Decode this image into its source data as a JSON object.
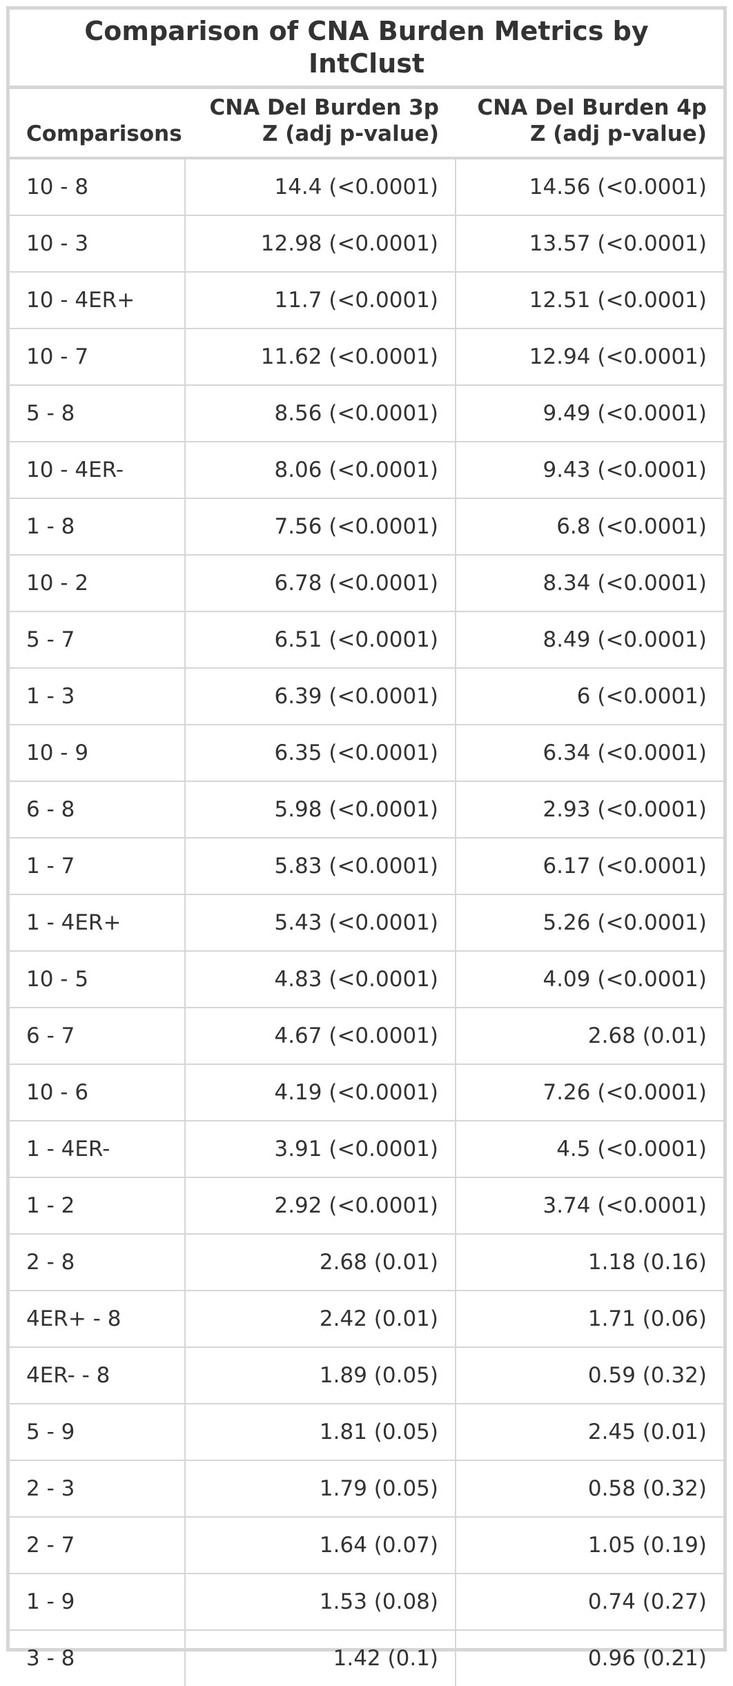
{
  "title": "Comparison of CNA Burden Metrics by IntClust",
  "columns": [
    "Comparisons",
    "CNA Del Burden 3p Z (adj p-value)",
    "CNA Del Burden 4p Z (adj p-value)"
  ],
  "rows": [
    [
      "10 - 8",
      "14.4 (<0.0001)",
      "14.56 (<0.0001)"
    ],
    [
      "10 - 3",
      "12.98 (<0.0001)",
      "13.57 (<0.0001)"
    ],
    [
      "10 - 4ER+",
      "11.7 (<0.0001)",
      "12.51 (<0.0001)"
    ],
    [
      "10 - 7",
      "11.62 (<0.0001)",
      "12.94 (<0.0001)"
    ],
    [
      "5 - 8",
      "8.56 (<0.0001)",
      "9.49 (<0.0001)"
    ],
    [
      "10 - 4ER-",
      "8.06 (<0.0001)",
      "9.43 (<0.0001)"
    ],
    [
      "1 - 8",
      "7.56 (<0.0001)",
      "6.8 (<0.0001)"
    ],
    [
      "10 - 2",
      "6.78 (<0.0001)",
      "8.34 (<0.0001)"
    ],
    [
      "5 - 7",
      "6.51 (<0.0001)",
      "8.49 (<0.0001)"
    ],
    [
      "1 - 3",
      "6.39 (<0.0001)",
      "6 (<0.0001)"
    ],
    [
      "10 - 9",
      "6.35 (<0.0001)",
      "6.34 (<0.0001)"
    ],
    [
      "6 - 8",
      "5.98 (<0.0001)",
      "2.93 (<0.0001)"
    ],
    [
      "1 - 7",
      "5.83 (<0.0001)",
      "6.17 (<0.0001)"
    ],
    [
      "1 - 4ER+",
      "5.43 (<0.0001)",
      "5.26 (<0.0001)"
    ],
    [
      "10 - 5",
      "4.83 (<0.0001)",
      "4.09 (<0.0001)"
    ],
    [
      "6 - 7",
      "4.67 (<0.0001)",
      "2.68 (0.01)"
    ],
    [
      "10 - 6",
      "4.19 (<0.0001)",
      "7.26 (<0.0001)"
    ],
    [
      "1 - 4ER-",
      "3.91 (<0.0001)",
      "4.5 (<0.0001)"
    ],
    [
      "1 - 2",
      "2.92 (<0.0001)",
      "3.74 (<0.0001)"
    ],
    [
      "2 - 8",
      "2.68 (0.01)",
      "1.18 (0.16)"
    ],
    [
      "4ER+ - 8",
      "2.42 (0.01)",
      "1.71 (0.06)"
    ],
    [
      "4ER- - 8",
      "1.89 (0.05)",
      "0.59 (0.32)"
    ],
    [
      "5 - 9",
      "1.81 (0.05)",
      "2.45 (0.01)"
    ],
    [
      "2 - 3",
      "1.79 (0.05)",
      "0.58 (0.32)"
    ],
    [
      "2 - 7",
      "1.64 (0.07)",
      "1.05 (0.19)"
    ],
    [
      "1 - 9",
      "1.53 (0.08)",
      "0.74 (0.27)"
    ],
    [
      "3 - 8",
      "1.42 (0.1)",
      "0.96 (0.21)"
    ]
  ]
}
